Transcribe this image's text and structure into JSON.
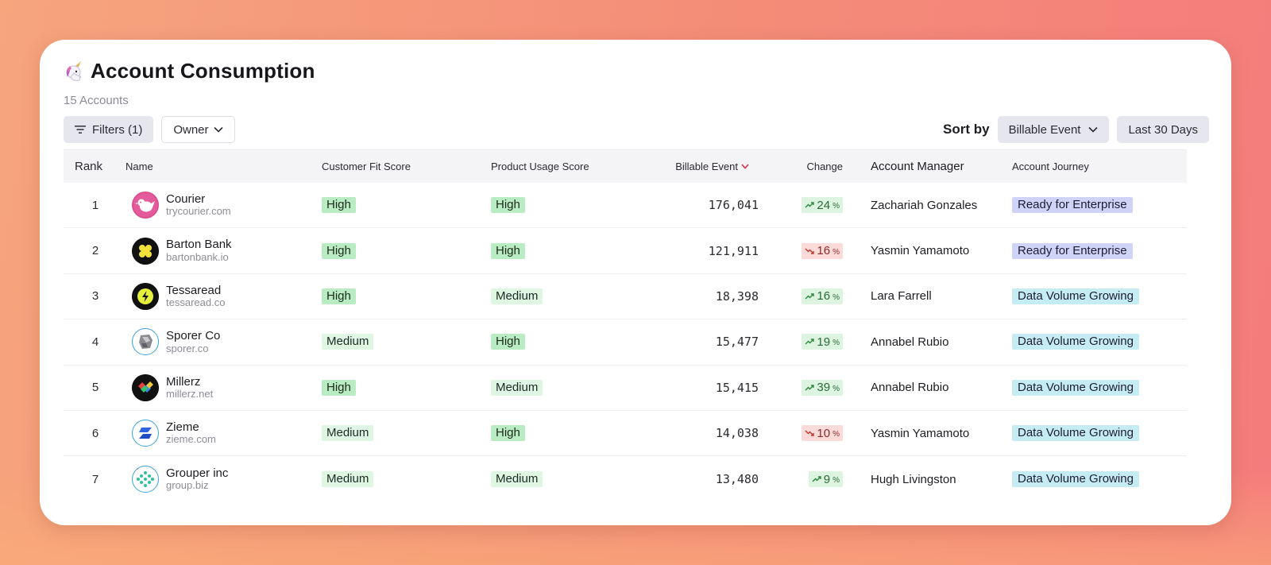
{
  "header": {
    "title": "Account Consumption",
    "subtitle": "15 Accounts"
  },
  "toolbar": {
    "filters_label": "Filters (1)",
    "owner_label": "Owner",
    "sort_by_label": "Sort by",
    "sort_field": "Billable Event",
    "date_range": "Last 30 Days"
  },
  "table": {
    "columns": {
      "rank": "Rank",
      "name": "Name",
      "customer_fit": "Customer Fit Score",
      "product_usage": "Product Usage Score",
      "billable_event": "Billable Event",
      "change": "Change",
      "account_manager": "Account Manager",
      "account_journey": "Account Journey"
    },
    "rows": [
      {
        "rank": "1",
        "name": "Courier",
        "domain": "trycourier.com",
        "fit": "High",
        "usage": "High",
        "billable": "176,041",
        "change": "24",
        "trend": "up",
        "manager": "Zachariah Gonzales",
        "journey": "Ready for Enterprise"
      },
      {
        "rank": "2",
        "name": "Barton Bank",
        "domain": "bartonbank.io",
        "fit": "High",
        "usage": "High",
        "billable": "121,911",
        "change": "16",
        "trend": "down",
        "manager": "Yasmin Yamamoto",
        "journey": "Ready for Enterprise"
      },
      {
        "rank": "3",
        "name": "Tessaread",
        "domain": "tessaread.co",
        "fit": "High",
        "usage": "Medium",
        "billable": "18,398",
        "change": "16",
        "trend": "up",
        "manager": "Lara Farrell",
        "journey": "Data Volume Growing"
      },
      {
        "rank": "4",
        "name": "Sporer Co",
        "domain": "sporer.co",
        "fit": "Medium",
        "usage": "High",
        "billable": "15,477",
        "change": "19",
        "trend": "up",
        "manager": "Annabel Rubio",
        "journey": "Data Volume Growing"
      },
      {
        "rank": "5",
        "name": "Millerz",
        "domain": "millerz.net",
        "fit": "High",
        "usage": "Medium",
        "billable": "15,415",
        "change": "39",
        "trend": "up",
        "manager": "Annabel Rubio",
        "journey": "Data Volume Growing"
      },
      {
        "rank": "6",
        "name": "Zieme",
        "domain": "zieme.com",
        "fit": "Medium",
        "usage": "High",
        "billable": "14,038",
        "change": "10",
        "trend": "down",
        "manager": "Yasmin Yamamoto",
        "journey": "Data Volume Growing"
      },
      {
        "rank": "7",
        "name": "Grouper inc",
        "domain": "group.biz",
        "fit": "Medium",
        "usage": "Medium",
        "billable": "13,480",
        "change": "9",
        "trend": "up",
        "manager": "Hugh Livingston",
        "journey": "Data Volume Growing"
      }
    ],
    "percent_symbol": "%"
  },
  "icons": {
    "title": "unicorn-icon",
    "filters": "filter-icon",
    "dropdown": "chevron-down-icon",
    "sort_direction": "sort-descending-icon",
    "trend_up": "trend-up-icon",
    "trend_down": "trend-down-icon"
  },
  "colors": {
    "score_high": "#b9ecc2",
    "score_medium": "#dff6e3",
    "change_up": "#dcf4e0",
    "change_down": "#fbdada",
    "journey_enterprise": "#cfd3f8",
    "journey_growing": "#c5ecf3",
    "sort_arrow": "#e0304e"
  }
}
